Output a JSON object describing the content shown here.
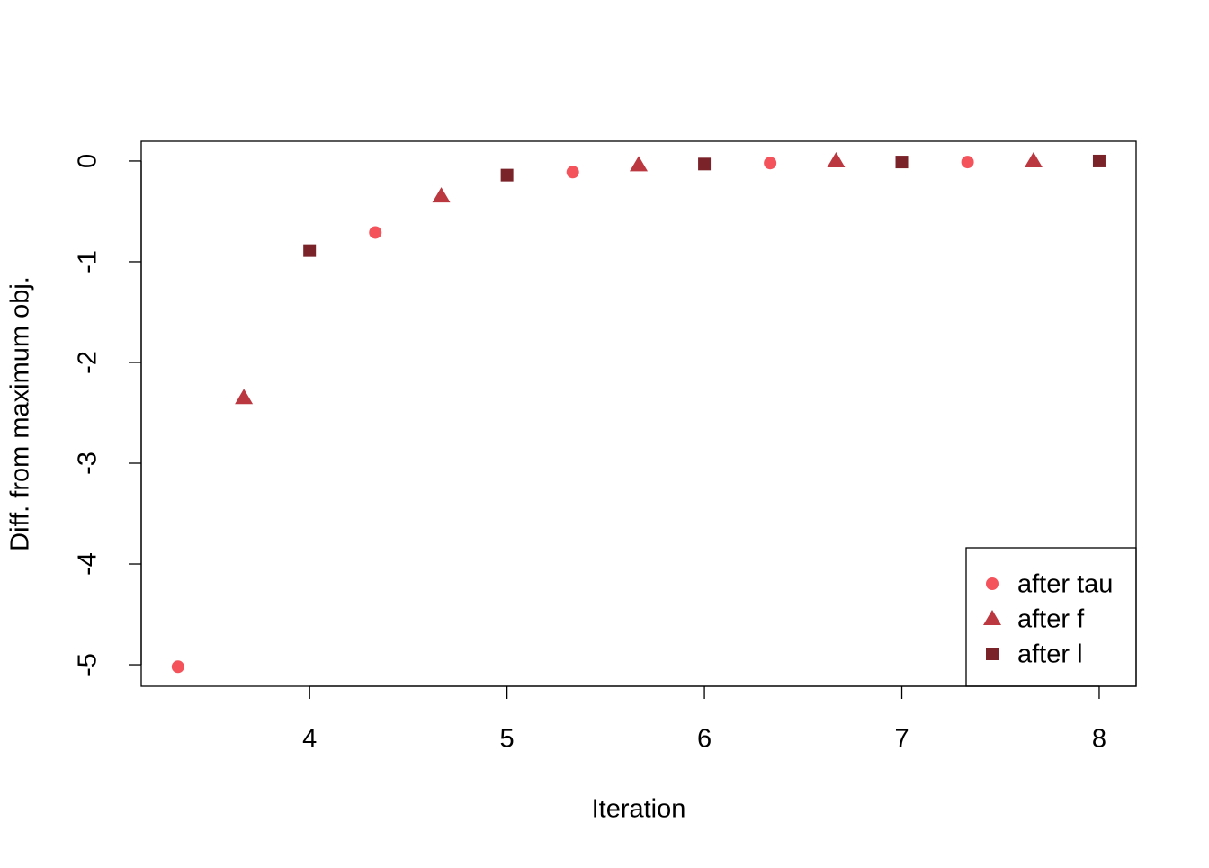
{
  "chart_data": {
    "type": "scatter",
    "x_label": "Iteration",
    "y_label": "Diff. from maximum obj.",
    "xlim": [
      3.147,
      8.187
    ],
    "ylim": [
      -5.214,
      0.196
    ],
    "xticks": [
      4,
      5,
      6,
      7,
      8
    ],
    "yticks": [
      0,
      -1,
      -2,
      -3,
      -4,
      -5
    ],
    "legend_position": "bottomright",
    "series": [
      {
        "name": "after tau",
        "color": "#f4535b",
        "marker": "circle",
        "x": [
          3.333,
          4.333,
          5.333,
          6.333,
          7.333
        ],
        "values": [
          -5.02,
          -0.71,
          -0.11,
          -0.02,
          -0.01
        ]
      },
      {
        "name": "after f",
        "color": "#bb3840",
        "marker": "triangle",
        "x": [
          3.667,
          4.667,
          5.667,
          6.667,
          7.667
        ],
        "values": [
          -2.35,
          -0.35,
          -0.04,
          0,
          0
        ]
      },
      {
        "name": "after l",
        "color": "#7a2329",
        "marker": "square",
        "x": [
          4,
          5,
          6,
          7,
          8
        ],
        "values": [
          -0.89,
          -0.14,
          -0.03,
          -0.01,
          0
        ]
      }
    ]
  }
}
